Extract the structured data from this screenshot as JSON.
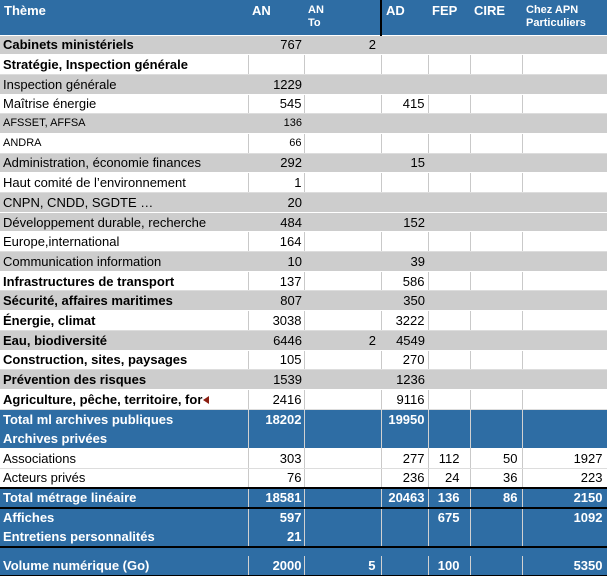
{
  "colors": {
    "header_blue": "#2E6DA4",
    "stripe_gray": "#CDCDCD",
    "gridline": "#C9C9C9",
    "truncation_marker_red": "#8B1E10",
    "separator_black": "#000000"
  },
  "header": {
    "cells": [
      {
        "label": "Thème"
      },
      {
        "label": "AN"
      },
      {
        "label": "AN\nTo"
      },
      {
        "label": "AD"
      },
      {
        "label": "FEP"
      },
      {
        "label": "CIRE"
      },
      {
        "label": "Chez APN\nParticuliers"
      }
    ]
  },
  "table": {
    "columns": [
      "Thème",
      "AN",
      "AN To",
      "AD",
      "FEP",
      "CIRE",
      "Chez APN Particuliers"
    ],
    "rows": [
      {
        "label": "Cabinets ministériels",
        "an": "767",
        "anto": "2",
        "ad": "",
        "fep": "",
        "cire": "",
        "chez": "",
        "variant": "gray",
        "bold": true
      },
      {
        "label": "Stratégie, Inspection générale",
        "an": "",
        "anto": "",
        "ad": "",
        "fep": "",
        "cire": "",
        "chez": "",
        "variant": "white",
        "bold": true
      },
      {
        "label": "Inspection générale",
        "an": "1229",
        "anto": "",
        "ad": "",
        "fep": "",
        "cire": "",
        "chez": "",
        "variant": "gray"
      },
      {
        "label": "Maîtrise énergie",
        "an": "545",
        "anto": "",
        "ad": "415",
        "fep": "",
        "cire": "",
        "chez": "",
        "variant": "white"
      },
      {
        "label": "AFSSET, AFFSA",
        "an": "136",
        "anto": "",
        "ad": "",
        "fep": "",
        "cire": "",
        "chez": "",
        "variant": "gray",
        "small": true
      },
      {
        "label": "ANDRA",
        "an": "66",
        "anto": "",
        "ad": "",
        "fep": "",
        "cire": "",
        "chez": "",
        "variant": "white",
        "small": true
      },
      {
        "label": "Administration, économie finances",
        "an": "292",
        "anto": "",
        "ad": "15",
        "fep": "",
        "cire": "",
        "chez": "",
        "variant": "gray"
      },
      {
        "label": "Haut comité de l’environnement",
        "an": "1",
        "anto": "",
        "ad": "",
        "fep": "",
        "cire": "",
        "chez": "",
        "variant": "white"
      },
      {
        "label": "CNPN, CNDD, SGDTE …",
        "an": "20",
        "anto": "",
        "ad": "",
        "fep": "",
        "cire": "",
        "chez": "",
        "variant": "gray"
      },
      {
        "label": "Développement durable, recherche",
        "an": "484",
        "anto": "",
        "ad": "152",
        "fep": "",
        "cire": "",
        "chez": "",
        "variant": "gray"
      },
      {
        "label": "Europe,international",
        "an": "164",
        "anto": "",
        "ad": "",
        "fep": "",
        "cire": "",
        "chez": "",
        "variant": "white"
      },
      {
        "label": "Communication information",
        "an": "10",
        "anto": "",
        "ad": "39",
        "fep": "",
        "cire": "",
        "chez": "",
        "variant": "gray"
      },
      {
        "label": "Infrastructures de transport",
        "an": "137",
        "anto": "",
        "ad": "586",
        "fep": "",
        "cire": "",
        "chez": "",
        "variant": "white",
        "bold": true
      },
      {
        "label": "Sécurité, affaires maritimes",
        "an": "807",
        "anto": "",
        "ad": "350",
        "fep": "",
        "cire": "",
        "chez": "",
        "variant": "gray",
        "bold": true
      },
      {
        "label": "Énergie, climat",
        "an": "3038",
        "anto": "",
        "ad": "3222",
        "fep": "",
        "cire": "",
        "chez": "",
        "variant": "white",
        "bold": true
      },
      {
        "label": "Eau, biodiversité",
        "an": "6446",
        "anto": "2",
        "ad": "4549",
        "fep": "",
        "cire": "",
        "chez": "",
        "variant": "gray",
        "bold": true
      },
      {
        "label": "Construction, sites, paysages",
        "an": "105",
        "anto": "",
        "ad": "270",
        "fep": "",
        "cire": "",
        "chez": "",
        "variant": "white",
        "bold": true
      },
      {
        "label": "Prévention des risques",
        "an": "1539",
        "anto": "",
        "ad": "1236",
        "fep": "",
        "cire": "",
        "chez": "",
        "variant": "gray",
        "bold": true
      },
      {
        "label": "Agriculture, pêche, territoire, for",
        "an": "2416",
        "anto": "",
        "ad": "9116",
        "fep": "",
        "cire": "",
        "chez": "",
        "variant": "white",
        "bold": true,
        "truncated": true
      },
      {
        "label": "Total ml archives publiques",
        "an": "18202",
        "anto": "",
        "ad": "19950",
        "fep": "",
        "cire": "",
        "chez": "",
        "variant": "blue"
      },
      {
        "label": "Archives privées",
        "an": "",
        "anto": "",
        "ad": "",
        "fep": "",
        "cire": "",
        "chez": "",
        "variant": "blue"
      },
      {
        "label": "Associations",
        "an": "303",
        "anto": "",
        "ad": "277",
        "fep": "112",
        "cire": "50",
        "chez": "1927",
        "variant": "white"
      },
      {
        "label": "Acteurs privés",
        "an": "76",
        "anto": "",
        "ad": "236",
        "fep": "24",
        "cire": "36",
        "chez": "223",
        "variant": "white"
      },
      {
        "label": "Total métrage linéaire",
        "an": "18581",
        "anto": "",
        "ad": "20463",
        "fep": "136",
        "cire": "86",
        "chez": "2150",
        "variant": "blue",
        "lines": [
          "top",
          "bottom"
        ]
      },
      {
        "label": "Affiches",
        "an": "597",
        "anto": "",
        "ad": "",
        "fep": "675",
        "cire": "",
        "chez": "1092",
        "variant": "blue"
      },
      {
        "label": "Entretiens personnalités",
        "an": "21",
        "anto": "",
        "ad": "",
        "fep": "",
        "cire": "",
        "chez": "",
        "variant": "blue",
        "lines": [
          "bottom"
        ]
      },
      {
        "label": "",
        "an": "",
        "anto": "",
        "ad": "",
        "fep": "",
        "cire": "",
        "chez": "",
        "variant": "gap"
      },
      {
        "label": "Volume numérique (Go)",
        "an": "2000",
        "anto": "5",
        "ad": "",
        "fep": "100",
        "cire": "",
        "chez": "5350",
        "variant": "blue",
        "lines": [
          "bottom"
        ]
      }
    ]
  }
}
